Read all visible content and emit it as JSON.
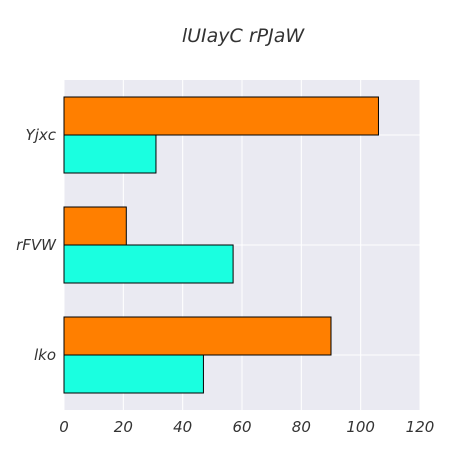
{
  "chart_data": {
    "type": "bar",
    "orientation": "horizontal",
    "title": "lUIayC rPJaW",
    "xlabel": "",
    "ylabel": "",
    "categories": [
      "lko",
      "rFVW",
      "Yjxc"
    ],
    "series": [
      {
        "values": [
          47,
          57,
          31
        ],
        "color": "#1affe0"
      },
      {
        "values": [
          90,
          21,
          106
        ],
        "color": "#ff7f00"
      }
    ],
    "xlim": [
      0,
      120
    ],
    "xticks": [
      0,
      20,
      40,
      60,
      80,
      100,
      120
    ],
    "grid": true,
    "legend": false,
    "background": "#eaeaf2",
    "grid_color": "#ffffff"
  }
}
